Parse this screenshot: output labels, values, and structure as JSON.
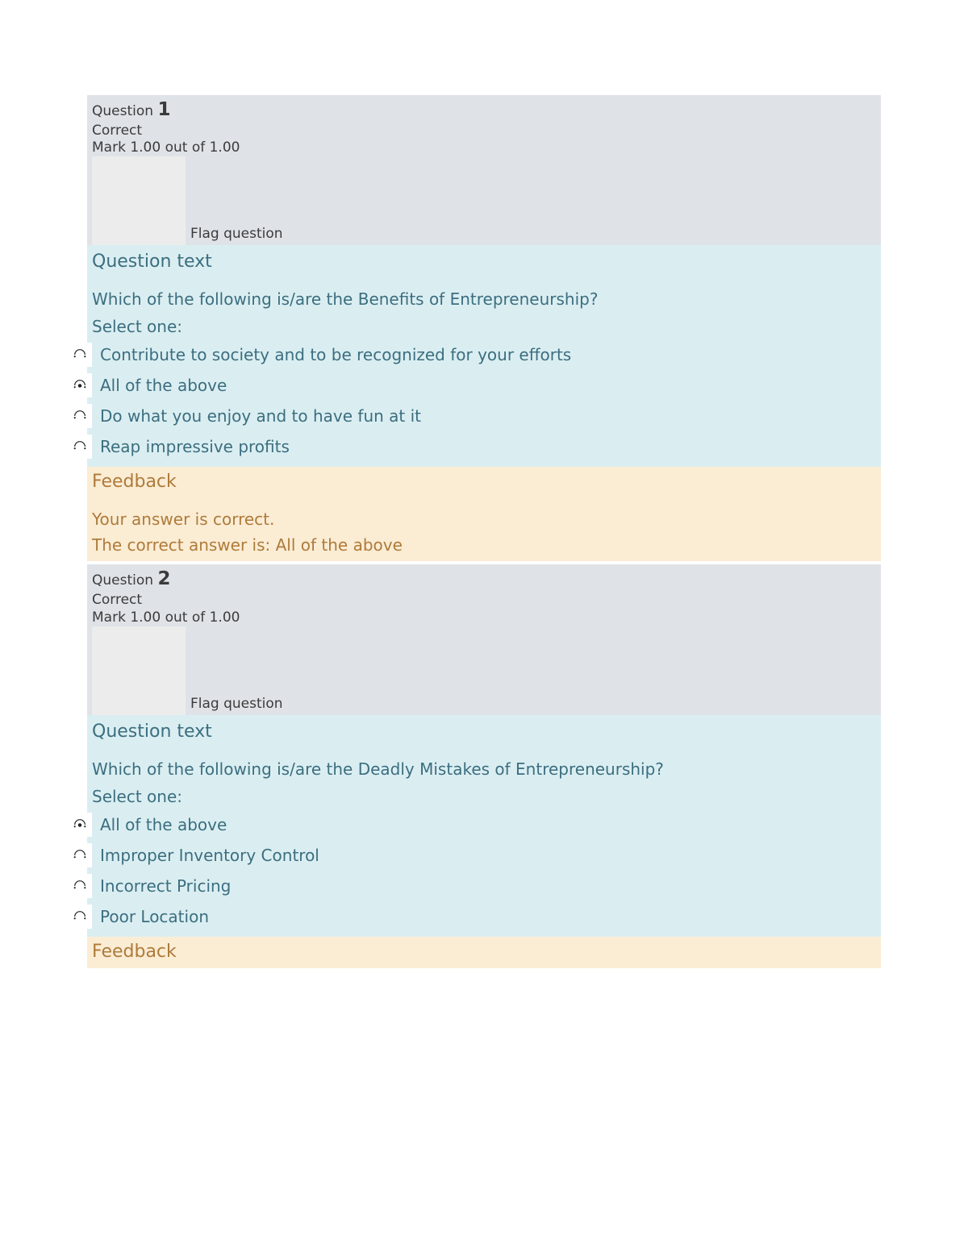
{
  "questions": [
    {
      "label": "Question",
      "number": "1",
      "status": "Correct",
      "mark": "Mark 1.00 out of 1.00",
      "flag": "Flag question",
      "bodyTitle": "Question text",
      "text": "Which of the following is/are the Benefits of Entrepreneurship?",
      "selectOne": "Select one:",
      "options": [
        {
          "label": "Contribute to society and to be recognized for your efforts",
          "selected": false
        },
        {
          "label": "All of the above",
          "selected": true
        },
        {
          "label": "Do what you enjoy and to have fun at it",
          "selected": false
        },
        {
          "label": "Reap impressive profits",
          "selected": false
        }
      ],
      "feedbackTitle": "Feedback",
      "feedbackCorrect": "Your answer is correct.",
      "feedbackAnswer": "The correct answer is: All of the above"
    },
    {
      "label": "Question",
      "number": "2",
      "status": "Correct",
      "mark": "Mark 1.00 out of 1.00",
      "flag": "Flag question",
      "bodyTitle": "Question text",
      "text": "Which of the following is/are the Deadly Mistakes of Entrepreneurship?",
      "selectOne": "Select one:",
      "options": [
        {
          "label": "All of the above",
          "selected": true
        },
        {
          "label": "Improper Inventory Control",
          "selected": false
        },
        {
          "label": "Incorrect Pricing",
          "selected": false
        },
        {
          "label": "Poor Location",
          "selected": false
        }
      ],
      "feedbackTitle": "Feedback",
      "feedbackCorrect": "",
      "feedbackAnswer": ""
    }
  ],
  "colors": {
    "headerBg": "#dfe3e8",
    "flagBg": "#ececec",
    "bodyBg": "#daeef2",
    "feedbackBg": "#fbecd4",
    "headerText": "#3b3b3b",
    "bodyText": "#3c6e7f",
    "feedbackText": "#ae7b3a"
  }
}
